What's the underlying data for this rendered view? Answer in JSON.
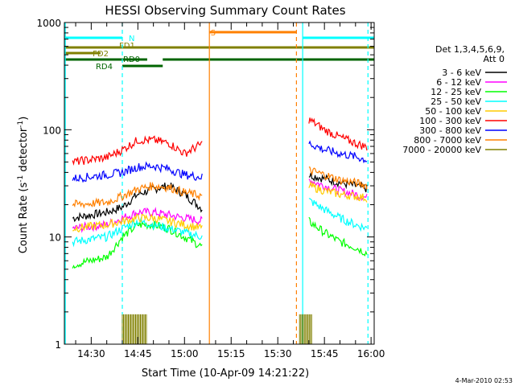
{
  "chart_data": {
    "type": "line",
    "title": "HESSI Observing Summary Count Rates",
    "xlabel": "Start Time (10-Apr-09 14:21:22)",
    "ylabel": "Count Rate (s⁻¹ detector⁻¹)",
    "ylabel_parts": {
      "main": "Count Rate (s",
      "sup1": "-1",
      "mid": " detector",
      "sup2": "-1",
      "end": ")"
    },
    "y_scale": "log",
    "ylim": [
      1,
      1000
    ],
    "xlim": [
      "14:21:22",
      "16:01:00"
    ],
    "x_ticks": [
      "14:30",
      "14:45",
      "15:00",
      "15:15",
      "15:30",
      "15:45",
      "16:00"
    ],
    "y_ticks": [
      "1",
      "10",
      "100",
      "1000"
    ],
    "grid": false,
    "legend_position": "right",
    "legend_header": [
      "Det 1,3,4,5,6,9,",
      "Att 0"
    ],
    "footer_date": "4-Mar-2010 02:53",
    "series": [
      {
        "name": "3 - 6 keV",
        "color": "#000000",
        "x": [
          "14:24",
          "14:35",
          "14:40",
          "14:45",
          "14:50",
          "14:55",
          "15:00",
          "15:06",
          "15:40",
          "15:45",
          "15:50",
          "15:55",
          "15:59"
        ],
        "values": [
          15,
          17,
          19,
          25,
          28,
          30,
          25,
          18,
          38,
          35,
          32,
          30,
          28
        ]
      },
      {
        "name": "6 - 12 keV",
        "color": "#ff00ff",
        "x": [
          "14:24",
          "14:35",
          "14:40",
          "14:45",
          "14:50",
          "14:55",
          "15:00",
          "15:06",
          "15:40",
          "15:45",
          "15:50",
          "15:55",
          "15:59"
        ],
        "values": [
          12,
          13,
          15,
          17,
          17,
          16,
          15,
          14,
          34,
          30,
          27,
          25,
          23
        ]
      },
      {
        "name": "12 - 25 keV",
        "color": "#00ff00",
        "x": [
          "14:24",
          "14:35",
          "14:40",
          "14:45",
          "14:50",
          "14:55",
          "15:00",
          "15:06",
          "15:40",
          "15:45",
          "15:50",
          "15:55",
          "15:59"
        ],
        "values": [
          5.5,
          6.5,
          10,
          13,
          13,
          12,
          10,
          8,
          14,
          11,
          9,
          8,
          7
        ]
      },
      {
        "name": "25 - 50 keV",
        "color": "#00ffff",
        "x": [
          "14:24",
          "14:35",
          "14:40",
          "14:45",
          "14:50",
          "14:55",
          "15:00",
          "15:06",
          "15:40",
          "15:45",
          "15:50",
          "15:55",
          "15:59"
        ],
        "values": [
          9,
          10,
          12,
          14,
          13,
          12,
          11,
          10,
          22,
          18,
          15,
          13,
          12
        ]
      },
      {
        "name": "50 - 100 keV",
        "color": "#ffcc00",
        "x": [
          "14:24",
          "14:35",
          "14:40",
          "14:45",
          "14:50",
          "14:55",
          "15:00",
          "15:06",
          "15:40",
          "15:45",
          "15:50",
          "15:55",
          "15:59"
        ],
        "values": [
          12,
          13,
          14,
          15,
          15,
          14,
          13,
          12,
          30,
          27,
          25,
          24,
          23
        ]
      },
      {
        "name": "100 - 300 keV",
        "color": "#ff0000",
        "x": [
          "14:24",
          "14:35",
          "14:40",
          "14:45",
          "14:50",
          "14:55",
          "15:00",
          "15:06",
          "15:40",
          "15:45",
          "15:50",
          "15:55",
          "15:59"
        ],
        "values": [
          50,
          55,
          65,
          80,
          80,
          75,
          60,
          75,
          125,
          100,
          85,
          75,
          68
        ]
      },
      {
        "name": "300 - 800 keV",
        "color": "#0000ff",
        "x": [
          "14:24",
          "14:35",
          "14:40",
          "14:45",
          "14:50",
          "14:55",
          "15:00",
          "15:06",
          "15:40",
          "15:45",
          "15:50",
          "15:55",
          "15:59"
        ],
        "values": [
          35,
          38,
          40,
          45,
          46,
          43,
          38,
          36,
          75,
          65,
          60,
          56,
          52
        ]
      },
      {
        "name": "800 - 7000 keV",
        "color": "#ff8000",
        "x": [
          "14:24",
          "14:35",
          "14:40",
          "14:45",
          "14:50",
          "14:55",
          "15:00",
          "15:06",
          "15:40",
          "15:45",
          "15:50",
          "15:55",
          "15:59"
        ],
        "values": [
          20,
          21,
          24,
          28,
          30,
          29,
          26,
          24,
          42,
          38,
          34,
          32,
          30
        ]
      },
      {
        "name": "7000 - 20000 keV",
        "color": "#808000",
        "x": [
          "14:40",
          "14:48",
          "15:37",
          "15:41"
        ],
        "values": [
          1.9,
          1.9,
          1.9,
          1.9
        ]
      }
    ],
    "vertical_lines": [
      {
        "t": "14:21:40",
        "color": "#00ffff",
        "style": "solid"
      },
      {
        "t": "14:40",
        "color": "#00ffff",
        "style": "dashed"
      },
      {
        "t": "15:08",
        "color": "#ff8000",
        "style": "solid"
      },
      {
        "t": "15:36",
        "color": "#ff8000",
        "style": "dashed"
      },
      {
        "t": "15:38",
        "color": "#00ffff",
        "style": "solid"
      },
      {
        "t": "15:59",
        "color": "#00ffff",
        "style": "dashed"
      }
    ],
    "flag_bars": [
      {
        "label": "N",
        "color": "#00ffff",
        "segments": [
          [
            "14:21:22",
            "14:40"
          ],
          [
            "15:38",
            "16:01"
          ]
        ]
      },
      {
        "label": "S",
        "color": "#ff8000",
        "segments": [
          [
            "15:08",
            "15:36"
          ]
        ]
      },
      {
        "label": "FD1",
        "color": "#808000",
        "segments": [
          [
            "14:21:22",
            "16:01"
          ]
        ]
      },
      {
        "label": "FD2",
        "color": "#808000",
        "segments": [
          [
            "14:21:22",
            "14:33"
          ]
        ]
      },
      {
        "label": "RD0",
        "color": "#006400",
        "segments": [
          [
            "14:21:22",
            "14:48"
          ],
          [
            "14:53",
            "16:01"
          ]
        ]
      },
      {
        "label": "RD4",
        "color": "#006400",
        "segments": [
          [
            "14:40",
            "14:53"
          ]
        ]
      }
    ]
  }
}
